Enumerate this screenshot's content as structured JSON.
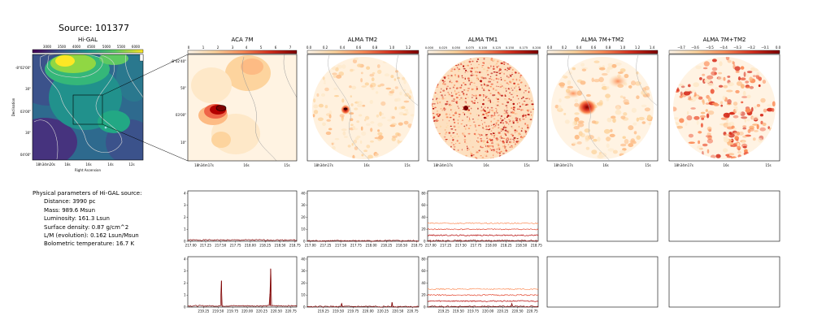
{
  "source_title": "Source: 101377",
  "colors": {
    "viridis": [
      "#440154",
      "#3b528b",
      "#21918c",
      "#5ec962",
      "#fde725"
    ],
    "orrd": [
      "#fff7ec",
      "#fdd49e",
      "#fc8d59",
      "#d7301f",
      "#7f0000"
    ],
    "spec_colors": [
      "#7f0000",
      "#b30000",
      "#e34a33",
      "#fc8d59"
    ],
    "contour": "#9a9a9a"
  },
  "params": {
    "heading": "Physical parameters of Hi-GAL source:",
    "items": [
      "Distance: 3990 pc",
      "Mass: 989.6 Msun",
      "Luminosity: 161.3 Lsun",
      "Surface density: 0.87 g/cm^2",
      "L/M (evolution): 0.162 Lsun/Msun",
      "Bolometric temperature: 16.7 K"
    ]
  },
  "chart_data": [
    {
      "type": "heatmap",
      "title": "Hi-GAL",
      "xlabel": "Right Ascension",
      "ylabel": "Declination",
      "colorbar_ticks": [
        "3000",
        "3500",
        "4000",
        "4500",
        "5000",
        "5500",
        "6000"
      ],
      "x_ticks": [
        "18h34m20s",
        "18s",
        "16s",
        "14s",
        "12s"
      ],
      "y_ticks": [
        "-8°02'00\"",
        "30\"",
        "03'00\"",
        "30\"",
        "04'00\""
      ]
    },
    {
      "type": "heatmap",
      "title": "ACA 7M",
      "colorbar_ticks": [
        "0",
        "1",
        "2",
        "3",
        "4",
        "5",
        "6",
        "7"
      ],
      "x_ticks": [
        "18h34m17s",
        "16s",
        "15s"
      ],
      "y_ticks": [
        "-8°02'40\"",
        "50\"",
        "03'00\"",
        "10\""
      ]
    },
    {
      "type": "heatmap",
      "title": "ALMA TM2",
      "colorbar_ticks": [
        "0.0",
        "0.2",
        "0.4",
        "0.6",
        "0.8",
        "1.0",
        "1.2"
      ],
      "x_ticks": [
        "18h34m17s",
        "16s",
        "15s"
      ]
    },
    {
      "type": "heatmap",
      "title": "ALMA TM1",
      "colorbar_ticks": [
        "0.000",
        "0.025",
        "0.050",
        "0.075",
        "0.100",
        "0.125",
        "0.150",
        "0.175",
        "0.200"
      ],
      "x_ticks": [
        "18h34m17s",
        "16s",
        "15s"
      ]
    },
    {
      "type": "heatmap",
      "title": "ALMA 7M+TM2",
      "colorbar_ticks": [
        "0.0",
        "0.2",
        "0.4",
        "0.6",
        "0.8",
        "1.0",
        "1.2",
        "1.4"
      ],
      "x_ticks": [
        "18h34m17s",
        "16s",
        "15s"
      ]
    },
    {
      "type": "heatmap",
      "title": "ALMA 7M+TM2",
      "colorbar_ticks": [
        "−0.7",
        "−0.6",
        "−0.5",
        "−0.4",
        "−0.3",
        "−0.2",
        "−0.1",
        "0.0"
      ],
      "x_ticks": [
        "18h34m17s",
        "16s",
        "15s"
      ]
    },
    {
      "type": "line",
      "x_ticks": [
        "217.00",
        "217.25",
        "217.50",
        "217.75",
        "218.00",
        "218.25",
        "218.50",
        "218.75"
      ],
      "xlim": [
        216.95,
        218.78
      ],
      "panels": [
        {
          "name": "ACA 7M",
          "yticks": [
            "0",
            "1",
            "2",
            "3",
            "4"
          ],
          "ylim": [
            0,
            4.2
          ],
          "series": [
            0.1
          ]
        },
        {
          "name": "ALMA TM2",
          "yticks": [
            "0",
            "10",
            "20",
            "30",
            "40"
          ],
          "ylim": [
            0,
            42
          ],
          "series": [
            0.4
          ]
        },
        {
          "name": "ALMA TM1",
          "yticks": [
            "0",
            "20",
            "40",
            "60",
            "80"
          ],
          "ylim": [
            0,
            84
          ],
          "series": [
            1,
            10,
            20,
            30
          ]
        }
      ]
    },
    {
      "type": "line",
      "x_ticks": [
        "219.25",
        "219.50",
        "219.75",
        "220.00",
        "220.25",
        "220.50",
        "220.75"
      ],
      "xlim": [
        218.98,
        220.85
      ],
      "panels": [
        {
          "name": "ACA 7M",
          "yticks": [
            "0",
            "1",
            "2",
            "3",
            "4"
          ],
          "ylim": [
            0,
            4.2
          ],
          "series": [
            0.1
          ],
          "peaks": [
            {
              "x": 219.56,
              "y": 2.2
            },
            {
              "x": 220.4,
              "y": 3.2
            },
            {
              "x": 220.39,
              "y": 1.1
            }
          ]
        },
        {
          "name": "ALMA TM2",
          "yticks": [
            "0",
            "10",
            "20",
            "30",
            "40"
          ],
          "ylim": [
            0,
            42
          ],
          "series": [
            0.4
          ],
          "peaks": [
            {
              "x": 219.56,
              "y": 3
            },
            {
              "x": 220.4,
              "y": 4
            }
          ]
        },
        {
          "name": "ALMA TM1",
          "yticks": [
            "0",
            "20",
            "40",
            "60",
            "80"
          ],
          "ylim": [
            0,
            84
          ],
          "series": [
            1,
            10,
            20,
            30
          ],
          "peaks": [
            {
              "x": 220.4,
              "y": 6
            }
          ]
        }
      ]
    }
  ]
}
